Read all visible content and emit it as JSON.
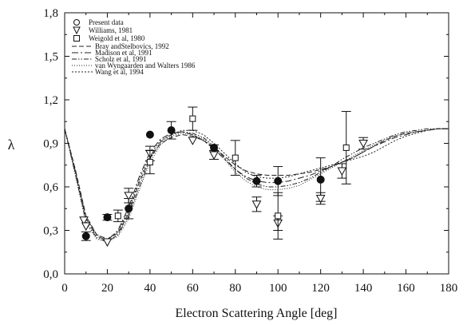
{
  "chart_data": {
    "type": "scatter",
    "xlabel": "Electron Scattering Angle [deg]",
    "ylabel": "λ",
    "xlim": [
      0,
      180
    ],
    "ylim": [
      0.0,
      1.8
    ],
    "xticks": [
      0,
      20,
      40,
      60,
      80,
      100,
      120,
      140,
      160,
      180
    ],
    "yticks": [
      0.0,
      0.3,
      0.6,
      0.9,
      1.2,
      1.5,
      1.8
    ],
    "xtick_labels": [
      "0",
      "20",
      "40",
      "60",
      "80",
      "100",
      "120",
      "140",
      "160",
      "180"
    ],
    "ytick_labels": [
      "0,0",
      "0,3",
      "0,6",
      "0,9",
      "1,2",
      "1,5",
      "1,8"
    ],
    "grid": false,
    "legend_position": "top-left",
    "legend": [
      {
        "label": "Present data",
        "marker": "circle",
        "style": "marker"
      },
      {
        "label": "Williams, 1981",
        "marker": "triangle-down",
        "style": "marker"
      },
      {
        "label": "Weigold et al, 1980",
        "marker": "square",
        "style": "marker"
      },
      {
        "label": "Bray andStelbovics, 1992",
        "style": "dashed"
      },
      {
        "label": "Madison et al, 1991",
        "style": "dash-dot"
      },
      {
        "label": "Scholz et al, 1991",
        "style": "dash-dot-dot"
      },
      {
        "label": "van   Wyngaarden and Walters 1986",
        "style": "fine-dotted"
      },
      {
        "label": "Wang et al, 1994",
        "style": "dotted"
      }
    ],
    "series": [
      {
        "name": "Present data",
        "kind": "points",
        "marker": "circle",
        "filled": true,
        "points": [
          {
            "x": 10,
            "y": 0.26,
            "err": 0.03
          },
          {
            "x": 20,
            "y": 0.39,
            "err": 0.02
          },
          {
            "x": 30,
            "y": 0.45,
            "err": 0.07
          },
          {
            "x": 40,
            "y": 0.96,
            "err": 0.0
          },
          {
            "x": 50,
            "y": 0.99,
            "err": 0.06
          },
          {
            "x": 70,
            "y": 0.87,
            "err": 0.02
          },
          {
            "x": 90,
            "y": 0.64,
            "err": 0.04
          },
          {
            "x": 100,
            "y": 0.64,
            "err": 0.1
          },
          {
            "x": 120,
            "y": 0.65,
            "err": 0.15
          }
        ]
      },
      {
        "name": "Williams, 1981",
        "kind": "points",
        "marker": "triangle-down",
        "filled": false,
        "points": [
          {
            "x": 9,
            "y": 0.37,
            "err": 0.0
          },
          {
            "x": 10,
            "y": 0.33,
            "err": 0.0
          },
          {
            "x": 20,
            "y": 0.22,
            "err": 0.0
          },
          {
            "x": 30,
            "y": 0.54,
            "err": 0.05
          },
          {
            "x": 40,
            "y": 0.83,
            "err": 0.05
          },
          {
            "x": 60,
            "y": 0.92,
            "err": 0.0
          },
          {
            "x": 70,
            "y": 0.82,
            "err": 0.03
          },
          {
            "x": 90,
            "y": 0.48,
            "err": 0.05
          },
          {
            "x": 100,
            "y": 0.35,
            "err": 0.05
          },
          {
            "x": 120,
            "y": 0.52,
            "err": 0.04
          },
          {
            "x": 130,
            "y": 0.71,
            "err": 0.05
          },
          {
            "x": 140,
            "y": 0.9,
            "err": 0.04
          }
        ]
      },
      {
        "name": "Weigold et al, 1980",
        "kind": "points",
        "marker": "square",
        "filled": false,
        "points": [
          {
            "x": 25,
            "y": 0.4,
            "err": 0.04
          },
          {
            "x": 40,
            "y": 0.77,
            "err": 0.08
          },
          {
            "x": 60,
            "y": 1.07,
            "err": 0.08
          },
          {
            "x": 80,
            "y": 0.8,
            "err": 0.12
          },
          {
            "x": 100,
            "y": 0.4,
            "err": 0.16
          },
          {
            "x": 132,
            "y": 0.87,
            "err": 0.25
          }
        ]
      },
      {
        "name": "Bray andStelbovics, 1992",
        "kind": "line",
        "dash": "6,3",
        "x": [
          0,
          5,
          10,
          15,
          20,
          25,
          30,
          35,
          40,
          45,
          50,
          55,
          60,
          65,
          70,
          75,
          80,
          85,
          90,
          95,
          100,
          105,
          110,
          115,
          120,
          125,
          130,
          135,
          140,
          145,
          150,
          155,
          160,
          165,
          170,
          175,
          180
        ],
        "y": [
          1.0,
          0.72,
          0.4,
          0.27,
          0.24,
          0.28,
          0.42,
          0.63,
          0.8,
          0.9,
          0.94,
          0.96,
          0.95,
          0.92,
          0.87,
          0.81,
          0.75,
          0.71,
          0.69,
          0.68,
          0.68,
          0.68,
          0.69,
          0.7,
          0.72,
          0.74,
          0.77,
          0.8,
          0.84,
          0.88,
          0.92,
          0.95,
          0.97,
          0.98,
          0.99,
          1.0,
          1.0
        ]
      },
      {
        "name": "Madison et al, 1991",
        "kind": "line",
        "dash": "8,3,2,3",
        "x": [
          0,
          5,
          10,
          15,
          20,
          25,
          30,
          35,
          40,
          45,
          50,
          55,
          60,
          65,
          70,
          75,
          80,
          85,
          90,
          95,
          100,
          105,
          110,
          115,
          120,
          125,
          130,
          135,
          140,
          145,
          150,
          155,
          160,
          165,
          170,
          175,
          180
        ],
        "y": [
          1.0,
          0.7,
          0.38,
          0.26,
          0.23,
          0.3,
          0.46,
          0.67,
          0.84,
          0.93,
          0.97,
          0.98,
          0.96,
          0.92,
          0.86,
          0.79,
          0.72,
          0.67,
          0.64,
          0.63,
          0.63,
          0.64,
          0.66,
          0.68,
          0.71,
          0.74,
          0.77,
          0.8,
          0.84,
          0.88,
          0.91,
          0.94,
          0.96,
          0.98,
          0.99,
          1.0,
          1.0
        ]
      },
      {
        "name": "Scholz et al, 1991",
        "kind": "line",
        "dash": "6,2,1.5,2,1.5,2",
        "x": [
          0,
          5,
          10,
          15,
          20,
          25,
          30,
          35,
          40,
          45,
          50,
          55,
          60,
          65,
          70,
          75,
          80,
          85,
          90,
          95,
          100,
          105,
          110,
          115,
          120,
          125,
          130,
          135,
          140,
          145,
          150,
          155,
          160,
          165,
          170,
          175,
          180
        ],
        "y": [
          1.0,
          0.69,
          0.36,
          0.25,
          0.22,
          0.27,
          0.4,
          0.6,
          0.79,
          0.91,
          0.96,
          0.98,
          0.97,
          0.94,
          0.88,
          0.8,
          0.72,
          0.66,
          0.62,
          0.6,
          0.6,
          0.61,
          0.63,
          0.66,
          0.7,
          0.74,
          0.79,
          0.83,
          0.87,
          0.9,
          0.93,
          0.96,
          0.98,
          0.99,
          1.0,
          1.0,
          1.0
        ]
      },
      {
        "name": "van   Wyngaarden and Walters 1986",
        "kind": "line",
        "dash": "1,2",
        "x": [
          0,
          5,
          10,
          15,
          20,
          25,
          30,
          35,
          40,
          45,
          50,
          55,
          60,
          65,
          70,
          75,
          80,
          85,
          90,
          95,
          100,
          105,
          110,
          115,
          120,
          125,
          130,
          135,
          140,
          145,
          150,
          155,
          160,
          165,
          170,
          175,
          180
        ],
        "y": [
          1.0,
          0.68,
          0.35,
          0.24,
          0.22,
          0.26,
          0.38,
          0.58,
          0.77,
          0.89,
          0.95,
          0.97,
          0.96,
          0.93,
          0.87,
          0.79,
          0.7,
          0.64,
          0.6,
          0.58,
          0.58,
          0.59,
          0.61,
          0.65,
          0.69,
          0.73,
          0.77,
          0.81,
          0.85,
          0.89,
          0.92,
          0.95,
          0.97,
          0.98,
          0.99,
          1.0,
          1.0
        ]
      },
      {
        "name": "Wang et al, 1994",
        "kind": "line",
        "dash": "2,2",
        "x": [
          0,
          5,
          10,
          15,
          20,
          25,
          30,
          35,
          40,
          45,
          50,
          55,
          60,
          65,
          70,
          75,
          80,
          85,
          90,
          95,
          100,
          105,
          110,
          115,
          120,
          125,
          130,
          135,
          140,
          145,
          150,
          155,
          160,
          165,
          170,
          175,
          180
        ],
        "y": [
          1.0,
          0.71,
          0.39,
          0.27,
          0.24,
          0.29,
          0.44,
          0.65,
          0.82,
          0.92,
          0.96,
          0.99,
          0.99,
          0.96,
          0.9,
          0.83,
          0.76,
          0.7,
          0.67,
          0.66,
          0.66,
          0.67,
          0.69,
          0.71,
          0.73,
          0.75,
          0.77,
          0.79,
          0.81,
          0.84,
          0.88,
          0.92,
          0.95,
          0.97,
          0.99,
          1.0,
          1.0
        ]
      }
    ]
  }
}
